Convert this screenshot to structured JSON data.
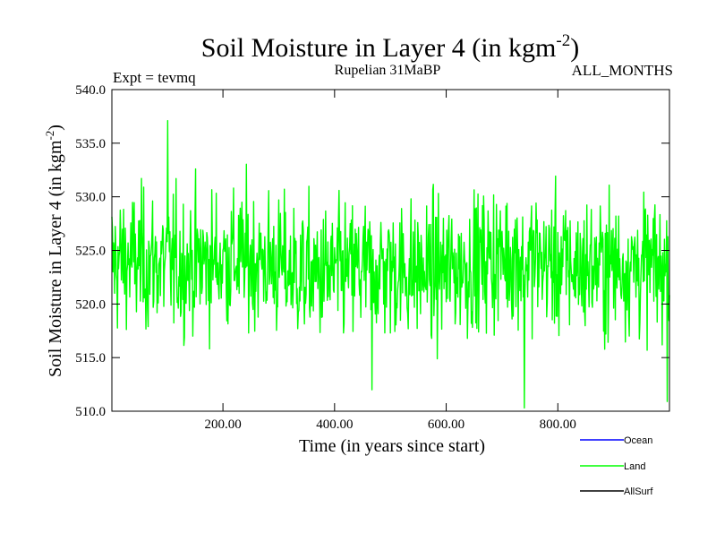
{
  "chart_data": {
    "type": "line",
    "title": "Soil Moisture in Layer 4 (in kgm",
    "title_superscript": "-2",
    "title_close": ")",
    "subtitle": "Rupelian  31MaBP",
    "left_annotation": "Expt = tevmq",
    "right_annotation": "ALL_MONTHS",
    "xlabel": "Time (in years since start)",
    "ylabel": "Soil Moisture in Layer 4 (in kgm",
    "ylabel_superscript": "-2",
    "ylabel_close": ")",
    "xlim": [
      1,
      1000
    ],
    "ylim": [
      510.0,
      540.0
    ],
    "x_ticks": [
      200,
      400,
      600,
      800
    ],
    "x_tick_labels": [
      "200.00",
      "400.00",
      "600.00",
      "800.00"
    ],
    "y_ticks": [
      510,
      515,
      520,
      525,
      530,
      535,
      540
    ],
    "y_tick_labels": [
      "510.0",
      "515.0",
      "520.0",
      "525.0",
      "530.0",
      "535.0",
      "540.0"
    ],
    "series": [
      {
        "name": "Land",
        "color": "#00ff00",
        "stats": {
          "mean": 523.5,
          "std": 3.2,
          "min": 510.3,
          "max": 537.1,
          "n_points": 1000
        },
        "notable_points": [
          {
            "x": 101,
            "y": 537.1
          },
          {
            "x": 740,
            "y": 510.3
          },
          {
            "x": 996,
            "y": 510.9
          },
          {
            "x": 467,
            "y": 512.0
          }
        ]
      }
    ],
    "legend": [
      {
        "label": "Ocean",
        "color": "#0000ff"
      },
      {
        "label": "Land",
        "color": "#00ff00"
      },
      {
        "label": "AllSurf",
        "color": "#000000"
      }
    ]
  }
}
